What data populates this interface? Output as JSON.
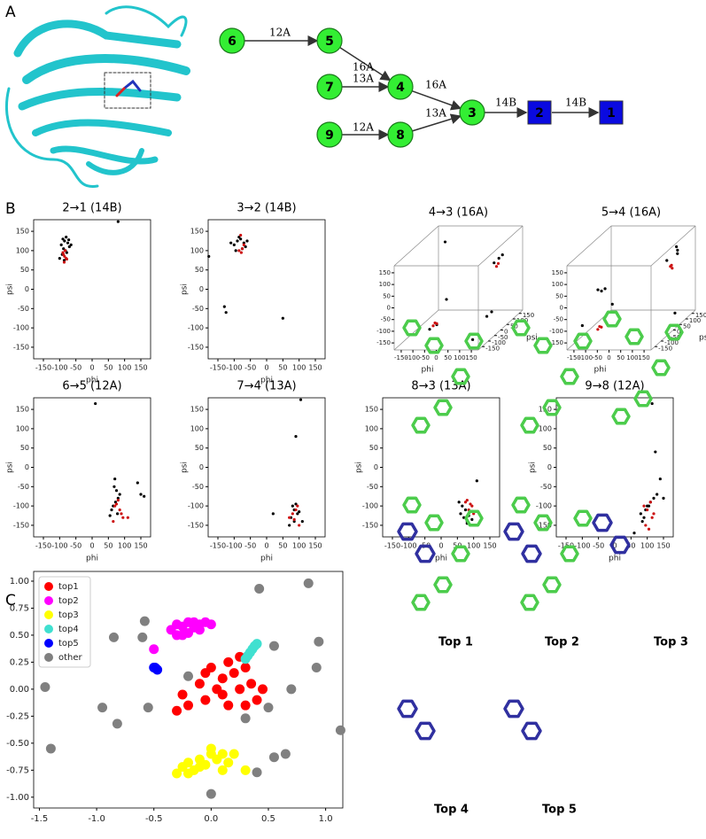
{
  "panel_labels": [
    "A",
    "B",
    "C"
  ],
  "diagram": {
    "nodes": [
      {
        "label": "6",
        "shape": "circle",
        "color": "#33ee33"
      },
      {
        "label": "5",
        "shape": "circle",
        "color": "#33ee33"
      },
      {
        "label": "7",
        "shape": "circle",
        "color": "#33ee33"
      },
      {
        "label": "4",
        "shape": "circle",
        "color": "#33ee33"
      },
      {
        "label": "9",
        "shape": "circle",
        "color": "#33ee33"
      },
      {
        "label": "8",
        "shape": "circle",
        "color": "#33ee33"
      },
      {
        "label": "3",
        "shape": "circle",
        "color": "#33ee33"
      },
      {
        "label": "2",
        "shape": "square",
        "color": "#0a0ae0"
      },
      {
        "label": "1",
        "shape": "square",
        "color": "#0a0ae0"
      }
    ],
    "edge_labels": [
      "12A",
      "16A",
      "13A",
      "16A",
      "12A",
      "13A",
      "14B",
      "14B"
    ]
  },
  "chart_data": [
    {
      "type": "scatter",
      "title": "2→1  (14B)",
      "xlabel": "phi",
      "ylabel": "psi",
      "xlim": [
        -180,
        180
      ],
      "ylim": [
        -180,
        180
      ],
      "xticks": [
        -150,
        -100,
        -50,
        0,
        50,
        100,
        150
      ],
      "yticks": [
        -150,
        -100,
        -50,
        0,
        50,
        100,
        150
      ],
      "series": [
        {
          "color": "#000000",
          "x": [
            -90,
            -85,
            -80,
            -75,
            -70,
            -95,
            -88,
            -82,
            -78,
            -72,
            -92,
            -86,
            80,
            -65,
            -100
          ],
          "y": [
            130,
            125,
            135,
            120,
            110,
            115,
            105,
            100,
            95,
            128,
            90,
            75,
            175,
            115,
            80
          ]
        },
        {
          "color": "#cc1111",
          "x": [
            -85,
            -88,
            -80,
            -90,
            -83,
            -78,
            -86
          ],
          "y": [
            85,
            90,
            80,
            95,
            100,
            78,
            70
          ]
        }
      ]
    },
    {
      "type": "scatter",
      "title": "3→2  (14B)",
      "xlabel": "phi",
      "ylabel": "psi",
      "xlim": [
        -180,
        180
      ],
      "ylim": [
        -180,
        180
      ],
      "xticks": [
        -150,
        -100,
        -50,
        0,
        50,
        100,
        150
      ],
      "yticks": [
        -150,
        -100,
        -50,
        0,
        50,
        100,
        150
      ],
      "series": [
        {
          "color": "#000000",
          "x": [
            -100,
            -90,
            -80,
            -70,
            -65,
            -95,
            -85,
            -60,
            -75,
            -130,
            -125,
            50,
            -178,
            -110
          ],
          "y": [
            115,
            125,
            130,
            120,
            110,
            100,
            135,
            125,
            105,
            -45,
            -60,
            -75,
            85,
            120
          ]
        },
        {
          "color": "#cc1111",
          "x": [
            -80,
            -75,
            -70,
            -85,
            -78
          ],
          "y": [
            140,
            105,
            115,
            100,
            95
          ]
        }
      ]
    },
    {
      "type": "scatter3d",
      "title": "4→3  (16A)",
      "xlabel": "phi",
      "ylabel": "psi",
      "xlim": [
        -180,
        180
      ],
      "ylim": [
        -180,
        180
      ],
      "zlim": [
        -180,
        180
      ],
      "xticks": [
        -150,
        -100,
        -50,
        0,
        50,
        100,
        150
      ],
      "yticks": [
        -150,
        -100,
        -50,
        0,
        50,
        100,
        150
      ],
      "zticks": [
        -150,
        -100,
        -50,
        0,
        50,
        100,
        150
      ],
      "series": [
        {
          "color": "#000000",
          "x": [
            -120,
            -30,
            100,
            110,
            120,
            -60,
            -40,
            140,
            90,
            100
          ],
          "y": [
            120,
            -40,
            100,
            120,
            130,
            -120,
            -100,
            -150,
            60,
            80
          ],
          "z": [
            140,
            -30,
            60,
            70,
            80,
            -120,
            -110,
            -150,
            -150,
            -140
          ]
        },
        {
          "color": "#cc1111",
          "x": [
            -50,
            -45,
            -40,
            105,
            110
          ],
          "y": [
            -110,
            -105,
            -100,
            110,
            115
          ],
          "z": [
            -110,
            -100,
            -105,
            40,
            50
          ]
        }
      ]
    },
    {
      "type": "scatter3d",
      "title": "5→4  (16A)",
      "xlabel": "phi",
      "ylabel": "psi",
      "xlim": [
        -180,
        180
      ],
      "ylim": [
        -180,
        180
      ],
      "zlim": [
        -180,
        180
      ],
      "xticks": [
        -150,
        -100,
        -50,
        0,
        50,
        100,
        150
      ],
      "yticks": [
        -150,
        -100,
        -50,
        0,
        50,
        100,
        150
      ],
      "zticks": [
        -150,
        -100,
        -50,
        0,
        50,
        100,
        150
      ],
      "series": [
        {
          "color": "#000000",
          "x": [
            -100,
            -90,
            -80,
            -130,
            120,
            130,
            135,
            100,
            -70,
            140
          ],
          "y": [
            -80,
            -70,
            -60,
            -150,
            140,
            130,
            120,
            100,
            -20,
            90
          ],
          "z": [
            30,
            20,
            25,
            -90,
            110,
            100,
            90,
            70,
            -60,
            -150
          ]
        },
        {
          "color": "#cc1111",
          "x": [
            -90,
            -85,
            -80,
            110,
            115,
            120
          ],
          "y": [
            -100,
            -95,
            -90,
            110,
            115,
            100
          ],
          "z": [
            -130,
            -120,
            -125,
            40,
            30,
            50
          ]
        }
      ]
    },
    {
      "type": "scatter",
      "title": "6→5  (12A)",
      "xlabel": "phi",
      "ylabel": "psi",
      "xlim": [
        -180,
        180
      ],
      "ylim": [
        -180,
        180
      ],
      "xticks": [
        -150,
        -100,
        -50,
        0,
        50,
        100,
        150
      ],
      "yticks": [
        -150,
        -100,
        -50,
        0,
        50,
        100,
        150
      ],
      "series": [
        {
          "color": "#000000",
          "x": [
            70,
            75,
            80,
            65,
            72,
            85,
            60,
            78,
            140,
            150,
            160,
            10,
            55,
            68
          ],
          "y": [
            -30,
            -60,
            -80,
            -100,
            -90,
            -70,
            -110,
            -120,
            -40,
            -70,
            -75,
            165,
            -125,
            -50
          ]
        },
        {
          "color": "#cc1111",
          "x": [
            75,
            80,
            70,
            85,
            95,
            110,
            65,
            90
          ],
          "y": [
            -95,
            -85,
            -100,
            -110,
            -130,
            -130,
            -140,
            -120
          ]
        }
      ]
    },
    {
      "type": "scatter",
      "title": "7→4  (13A)",
      "xlabel": "phi",
      "ylabel": "psi",
      "xlim": [
        -180,
        180
      ],
      "ylim": [
        -180,
        180
      ],
      "xticks": [
        -150,
        -100,
        -50,
        0,
        50,
        100,
        150
      ],
      "yticks": [
        -150,
        -100,
        -50,
        0,
        50,
        100,
        150
      ],
      "series": [
        {
          "color": "#000000",
          "x": [
            80,
            85,
            90,
            95,
            75,
            100,
            70,
            85,
            90,
            20,
            110,
            105
          ],
          "y": [
            -100,
            -110,
            -95,
            -120,
            -130,
            -115,
            -150,
            -140,
            80,
            -120,
            -140,
            175
          ]
        },
        {
          "color": "#cc1111",
          "x": [
            80,
            90,
            70,
            95,
            85,
            100
          ],
          "y": [
            -120,
            -110,
            -130,
            -100,
            -135,
            -150
          ]
        }
      ]
    },
    {
      "type": "scatter",
      "title": "8→3  (13A)",
      "xlabel": "phi",
      "ylabel": "psi",
      "xlim": [
        -180,
        180
      ],
      "ylim": [
        -180,
        180
      ],
      "xticks": [
        -150,
        -100,
        -50,
        0,
        50,
        100,
        150
      ],
      "yticks": [
        -150,
        -100,
        -50,
        0,
        50,
        100,
        150
      ],
      "series": [
        {
          "color": "#000000",
          "x": [
            60,
            70,
            80,
            90,
            75,
            85,
            95,
            65,
            55,
            110,
            100,
            80
          ],
          "y": [
            -120,
            -130,
            -140,
            -150,
            -110,
            -125,
            -135,
            -100,
            -90,
            -35,
            -150,
            -145
          ]
        },
        {
          "color": "#cc1111",
          "x": [
            80,
            90,
            85,
            95,
            100,
            75
          ],
          "y": [
            -85,
            -95,
            -110,
            -100,
            -120,
            -90
          ]
        }
      ]
    },
    {
      "type": "scatter",
      "title": "9→8  (12A)",
      "xlabel": "phi",
      "ylabel": "psi",
      "xlim": [
        -180,
        180
      ],
      "ylim": [
        -180,
        180
      ],
      "xticks": [
        -150,
        -100,
        -50,
        0,
        50,
        100,
        150
      ],
      "yticks": [
        -150,
        -100,
        -50,
        0,
        50,
        100,
        150
      ],
      "series": [
        {
          "color": "#000000",
          "x": [
            80,
            90,
            100,
            110,
            120,
            130,
            85,
            95,
            105,
            115,
            140,
            125,
            150,
            60
          ],
          "y": [
            -120,
            -130,
            -100,
            -90,
            -80,
            -70,
            -140,
            -110,
            -100,
            165,
            -30,
            40,
            -80,
            -170
          ]
        },
        {
          "color": "#cc1111",
          "x": [
            90,
            100,
            110,
            120,
            95,
            105,
            115
          ],
          "y": [
            -100,
            -110,
            -90,
            -120,
            -150,
            -160,
            -130
          ]
        }
      ]
    },
    {
      "type": "scatter",
      "xlim": [
        -1.55,
        1.15
      ],
      "ylim": [
        -1.1,
        1.09
      ],
      "legend": "upper left",
      "xticks": [
        {
          "value": -1.5,
          "label": "-1.5"
        },
        {
          "value": -1.0,
          "label": "-1.0"
        },
        -0.5,
        {
          "value": 0,
          "label": "0.0"
        },
        0.5,
        {
          "value": 1.0,
          "label": "1.0"
        }
      ],
      "yticks": [
        {
          "value": 1.0,
          "label": "1.00"
        },
        0.75,
        {
          "value": 0.5,
          "label": "0.50"
        },
        0.25,
        {
          "value": 0,
          "label": "0.00"
        },
        -0.25,
        {
          "value": -0.5,
          "label": "-0.50"
        },
        -0.75,
        {
          "value": -1.0,
          "label": "-1.00"
        }
      ],
      "series": [
        {
          "name": "top1",
          "color": "#ff0000",
          "x": [
            -0.3,
            -0.2,
            -0.25,
            -0.1,
            -0.05,
            0.0,
            0.05,
            0.1,
            0.1,
            0.15,
            0.2,
            0.25,
            0.25,
            0.3,
            0.35,
            0.4,
            0.45,
            0.3,
            -0.05,
            0.15
          ],
          "y": [
            -0.2,
            -0.15,
            -0.05,
            0.05,
            0.15,
            0.2,
            0.0,
            -0.05,
            0.1,
            0.25,
            0.15,
            0.0,
            0.3,
            0.2,
            0.05,
            -0.1,
            0.0,
            -0.15,
            -0.1,
            -0.15
          ]
        },
        {
          "name": "top2",
          "color": "#ff00ff",
          "x": [
            -0.5,
            -0.35,
            -0.3,
            -0.25,
            -0.2,
            -0.15,
            -0.1,
            -0.05,
            0.0,
            -0.3,
            -0.2,
            -0.1,
            -0.25,
            -0.15
          ],
          "y": [
            0.37,
            0.55,
            0.6,
            0.58,
            0.62,
            0.57,
            0.6,
            0.62,
            0.6,
            0.5,
            0.52,
            0.55,
            0.5,
            0.62
          ]
        },
        {
          "name": "top3",
          "color": "#ffff00",
          "x": [
            -0.3,
            -0.25,
            -0.2,
            -0.15,
            -0.1,
            -0.05,
            0.0,
            0.05,
            0.1,
            0.15,
            -0.2,
            -0.1,
            0.0,
            0.1,
            0.3,
            0.2
          ],
          "y": [
            -0.78,
            -0.72,
            -0.68,
            -0.75,
            -0.65,
            -0.7,
            -0.6,
            -0.65,
            -0.6,
            -0.68,
            -0.78,
            -0.72,
            -0.55,
            -0.75,
            -0.75,
            -0.6
          ]
        },
        {
          "name": "top4",
          "color": "#40e0d0",
          "x": [
            0.3,
            0.32,
            0.34,
            0.36,
            0.38,
            0.4
          ],
          "y": [
            0.28,
            0.31,
            0.34,
            0.37,
            0.4,
            0.42
          ]
        },
        {
          "name": "top5",
          "color": "#0000ff",
          "x": [
            -0.5,
            -0.49,
            -0.48,
            -0.47
          ],
          "y": [
            0.2,
            0.2,
            0.19,
            0.18
          ]
        },
        {
          "name": "other",
          "color": "#808080",
          "x": [
            -1.45,
            -1.4,
            -0.95,
            -0.85,
            -0.82,
            -0.6,
            -0.58,
            -0.55,
            -0.2,
            0.0,
            0.3,
            0.42,
            0.4,
            0.5,
            0.55,
            0.55,
            0.65,
            0.7,
            0.85,
            0.92,
            0.94,
            1.13
          ],
          "y": [
            0.02,
            -0.55,
            -0.17,
            0.48,
            -0.32,
            0.48,
            0.63,
            -0.17,
            0.12,
            -0.97,
            -0.27,
            0.93,
            -0.77,
            -0.17,
            0.4,
            -0.63,
            -0.6,
            0.0,
            0.98,
            0.2,
            0.44,
            -0.38
          ]
        }
      ]
    }
  ],
  "images": [
    {
      "label": "Top 1"
    },
    {
      "label": "Top 2"
    },
    {
      "label": "Top 3"
    },
    {
      "label": "Top 4"
    },
    {
      "label": "Top 5"
    }
  ]
}
